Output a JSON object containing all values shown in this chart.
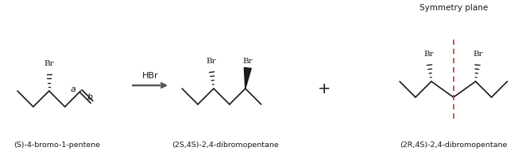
{
  "bg_color": "#ffffff",
  "title_symmetry": "Symmetry plane",
  "label_reactant": "(S)-4-bromo-1-pentene",
  "label_product1": "(2S,4S)-2,4-dibromopentane",
  "label_product2": "(2R,4S)-2,4-dibromopentane",
  "reagent": "HBr",
  "text_color": "#1a1a1a",
  "dashed_color": "#c0392b",
  "bond_color": "#1a1a1a",
  "arrow_color": "#555555",
  "plus_fontsize": 14,
  "label_fontsize": 6.8,
  "br_fontsize": 7.5,
  "reagent_fontsize": 8.0,
  "symmetry_fontsize": 7.5,
  "ab_fontsize": 8.0
}
